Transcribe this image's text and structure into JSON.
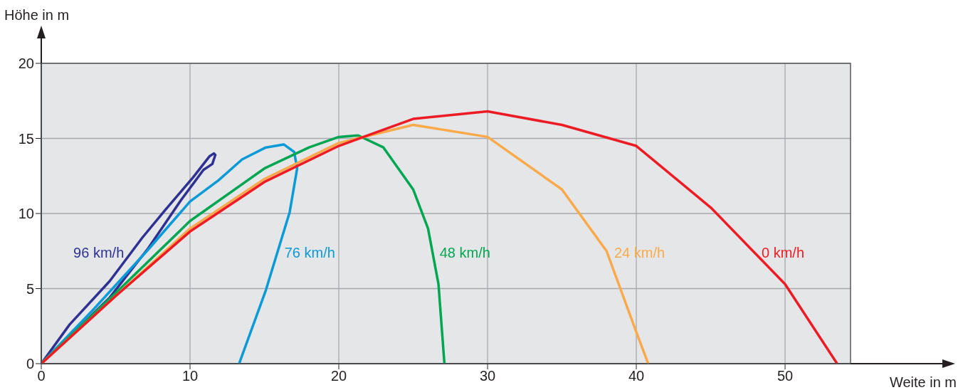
{
  "chart_data": {
    "type": "line",
    "xlabel": "Weite in m",
    "ylabel": "Höhe in m",
    "xlim": [
      0,
      54.4
    ],
    "ylim": [
      0,
      20
    ],
    "xticks": [
      0,
      10,
      20,
      30,
      40,
      50
    ],
    "yticks": [
      0,
      5,
      10,
      15,
      20
    ],
    "grid": true,
    "legend": false,
    "marker": "none",
    "line_style": "solid",
    "series": [
      {
        "name": "96 km/h",
        "color": "#2e3192",
        "x": [
          0,
          1.9,
          4.6,
          6.8,
          8.3,
          10.2,
          11.3,
          11.6,
          11.7,
          11.5,
          10.9,
          9.4,
          7.2,
          4.6,
          1.9,
          0.2
        ],
        "values": [
          0,
          2.6,
          5.5,
          8.4,
          10.2,
          12.4,
          13.8,
          14.0,
          13.9,
          13.3,
          12.9,
          10.9,
          7.7,
          4.4,
          1.8,
          0.2
        ]
      },
      {
        "name": "76 km/h",
        "color": "#0a9ad7",
        "x": [
          0,
          3.5,
          7.1,
          10.0,
          11.9,
          13.5,
          15.1,
          16.3,
          17.0,
          17.2,
          16.7,
          15.1,
          13.3
        ],
        "values": [
          0,
          3.6,
          7.5,
          10.8,
          12.2,
          13.6,
          14.4,
          14.6,
          14.1,
          13.0,
          10.1,
          4.9,
          0
        ]
      },
      {
        "name": "48 km/h",
        "color": "#00a651",
        "x": [
          0,
          5,
          10,
          15,
          18,
          20,
          21.3,
          23,
          25,
          26,
          26.7,
          27.1
        ],
        "values": [
          0,
          4.7,
          9.5,
          13.0,
          14.4,
          15.1,
          15.2,
          14.4,
          11.6,
          9.0,
          5.3,
          0
        ]
      },
      {
        "name": "24 km/h",
        "color": "#fbaa4b",
        "x": [
          0,
          5,
          10,
          15,
          20,
          25,
          30,
          35,
          38,
          40,
          40.8
        ],
        "values": [
          0,
          4.5,
          9.0,
          12.3,
          14.7,
          15.9,
          15.1,
          11.6,
          7.5,
          2.1,
          0
        ]
      },
      {
        "name": "0 km/h",
        "color": "#ed1c24",
        "x": [
          0,
          5,
          10,
          15,
          20,
          25,
          30,
          35,
          40,
          45,
          50,
          53.5
        ],
        "values": [
          0,
          4.5,
          8.8,
          12.1,
          14.5,
          16.3,
          16.8,
          15.9,
          14.5,
          10.4,
          5.3,
          0
        ]
      }
    ]
  }
}
